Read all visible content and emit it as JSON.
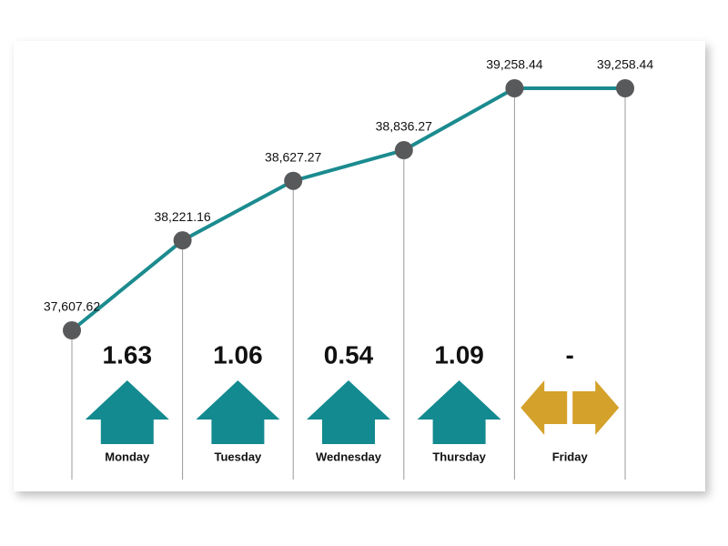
{
  "chart_data": {
    "type": "line",
    "categories": [
      null,
      null,
      null,
      null,
      null,
      null
    ],
    "series": [
      {
        "color": "#1b8b8f",
        "values": [
          37607.62,
          38221.16,
          38627.27,
          38836.27,
          39258.44,
          39258.44
        ],
        "value_labels": [
          "37,607.62",
          "38,221.16",
          "38,627.27",
          "38,836.27",
          "39,258.44",
          "39,258.44"
        ]
      }
    ],
    "days": [
      "Monday",
      "Tuesday",
      "Wednesday",
      "Thursday",
      "Friday"
    ],
    "changes": {
      "values": [
        1.63,
        1.06,
        0.54,
        1.09,
        null
      ],
      "value_labels": [
        "1.63",
        "1.06",
        "0.54",
        "1.09",
        "-"
      ],
      "up_color": "#138a8f",
      "flat_color": "#d4a12a"
    },
    "icon_symbol": "%"
  }
}
